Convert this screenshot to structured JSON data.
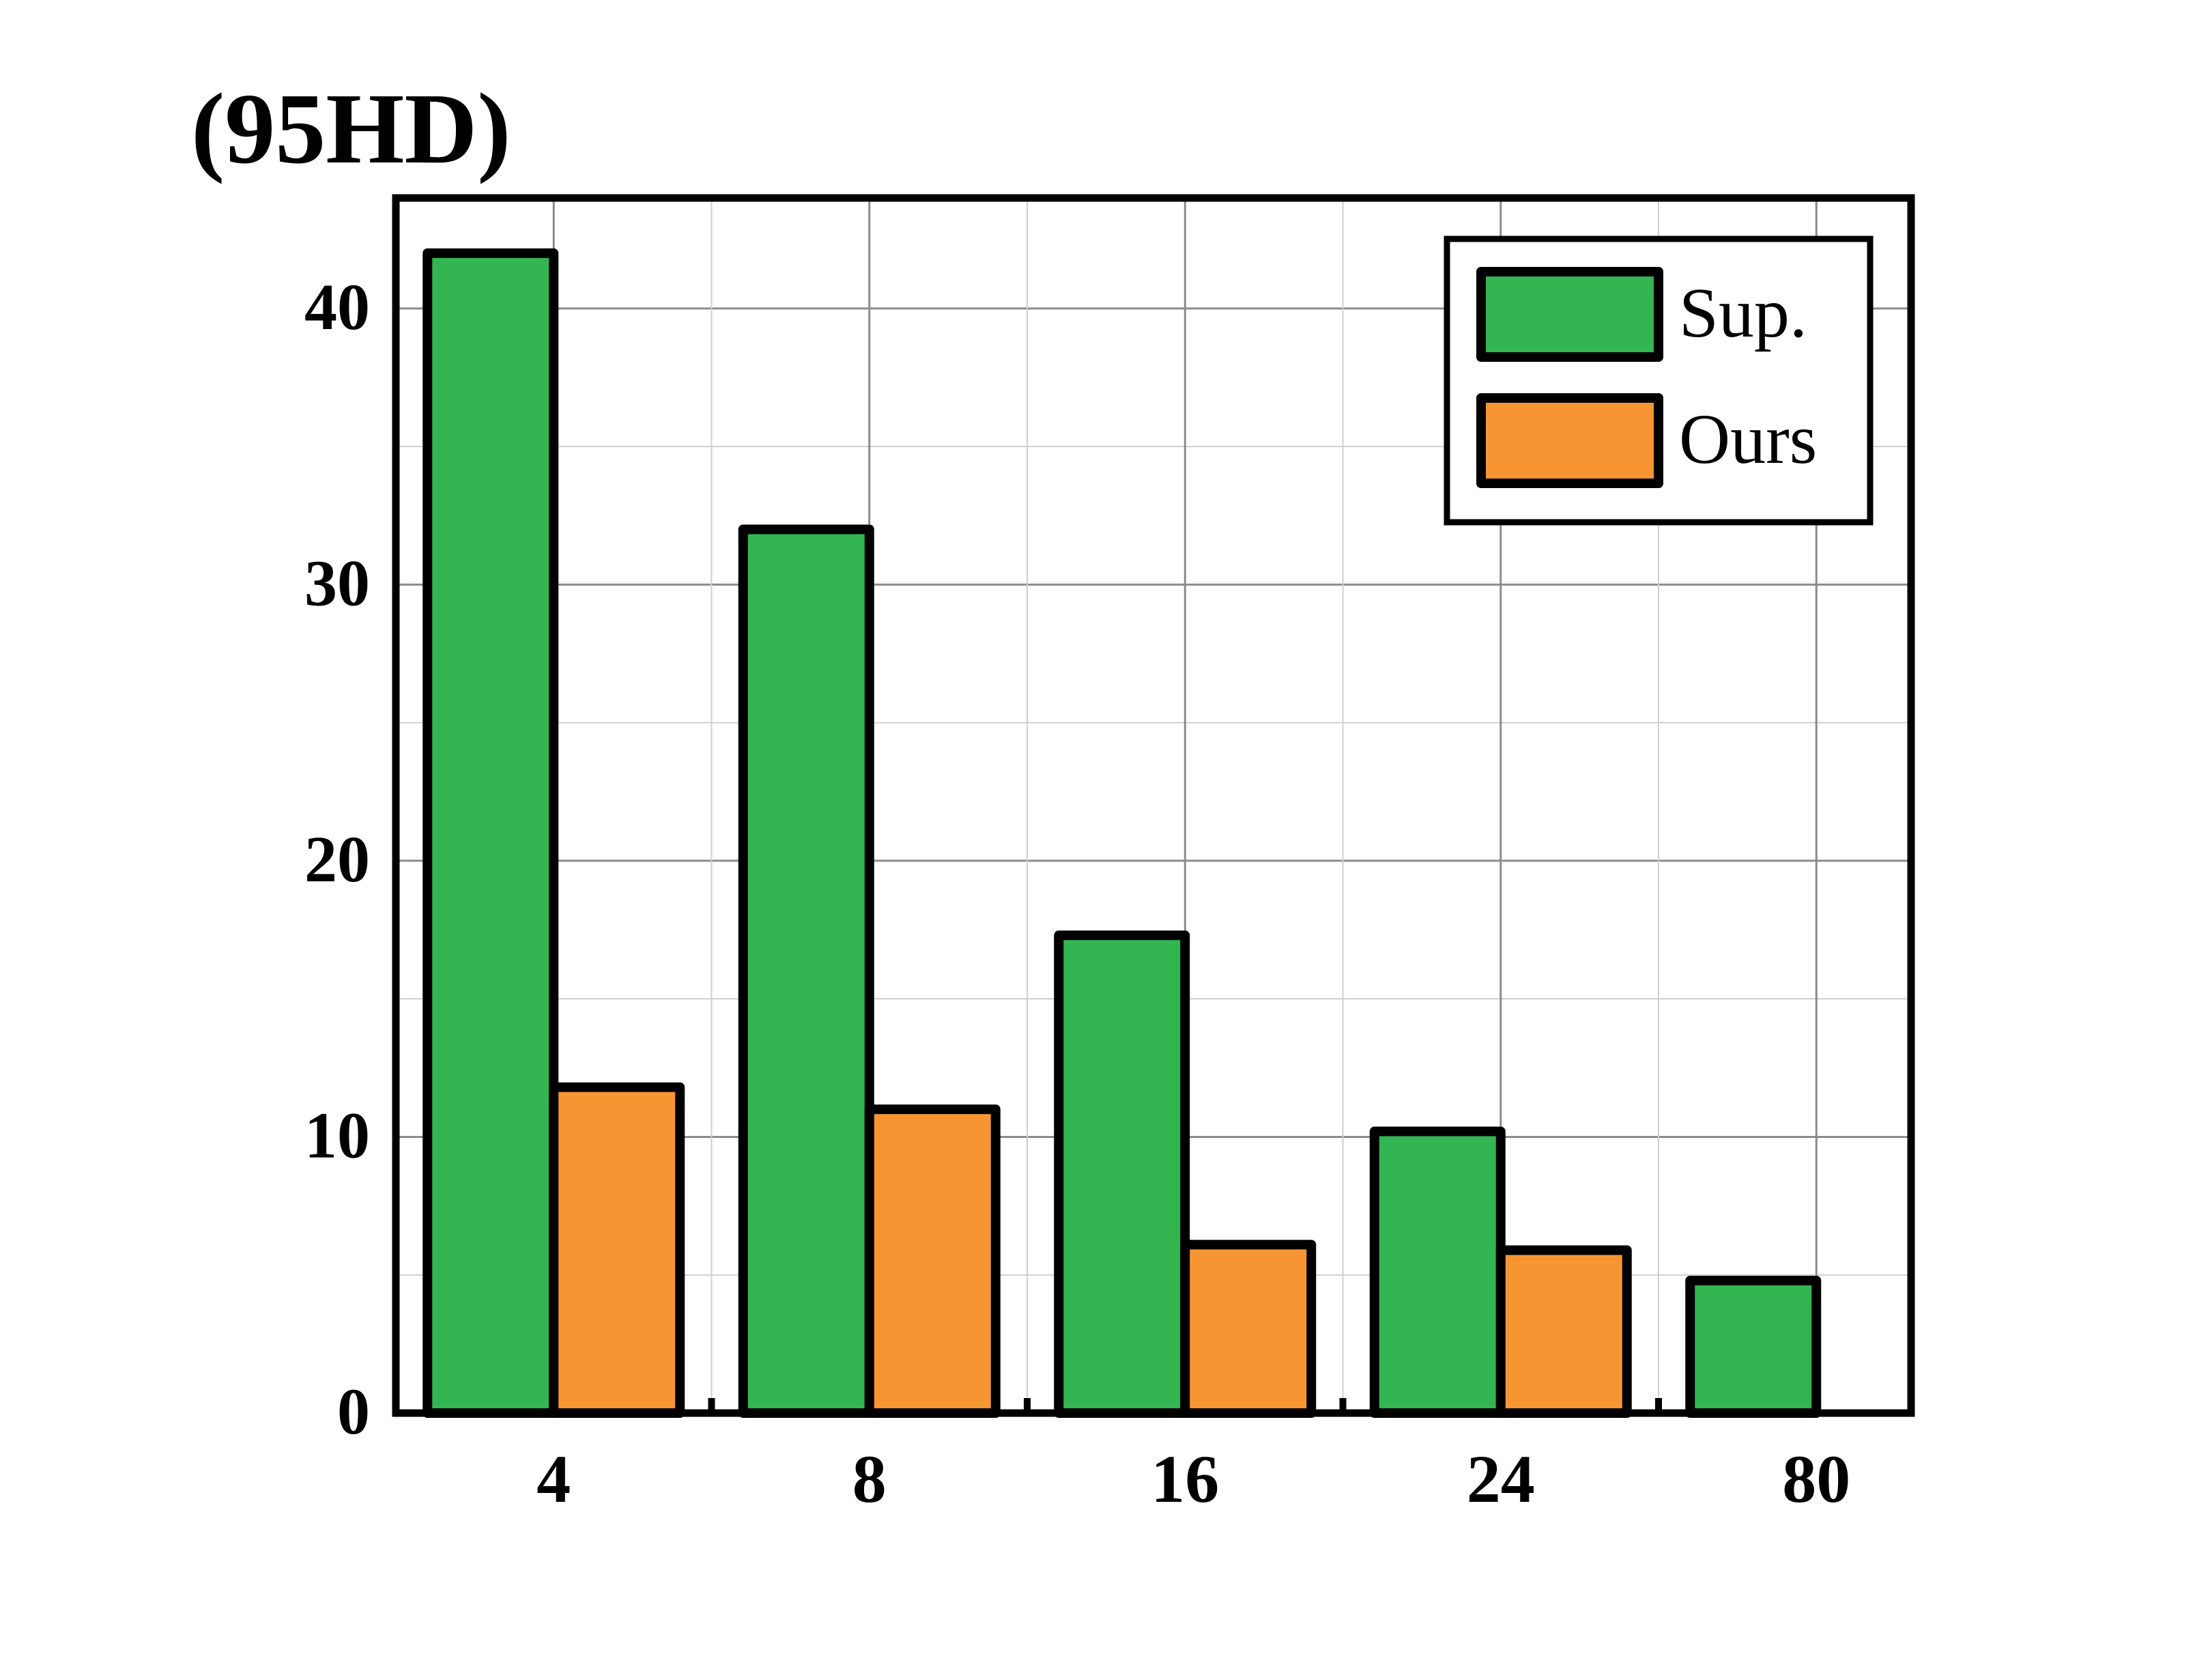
{
  "chart_data": {
    "type": "bar",
    "title": "(95HD)",
    "categories": [
      "4",
      "8",
      "16",
      "24",
      "80"
    ],
    "series": [
      {
        "name": "Sup.",
        "color": "#33b552",
        "values": [
          42.0,
          32.0,
          17.3,
          10.2,
          4.8
        ]
      },
      {
        "name": "Ours",
        "color": "#f79532",
        "values": [
          11.8,
          11.0,
          6.1,
          5.9,
          null
        ]
      }
    ],
    "ylim": [
      0,
      44
    ],
    "yticks": [
      0,
      10,
      20,
      30,
      40
    ],
    "xlabel": "",
    "ylabel": "",
    "grid": true,
    "legend_position": "top-right"
  }
}
